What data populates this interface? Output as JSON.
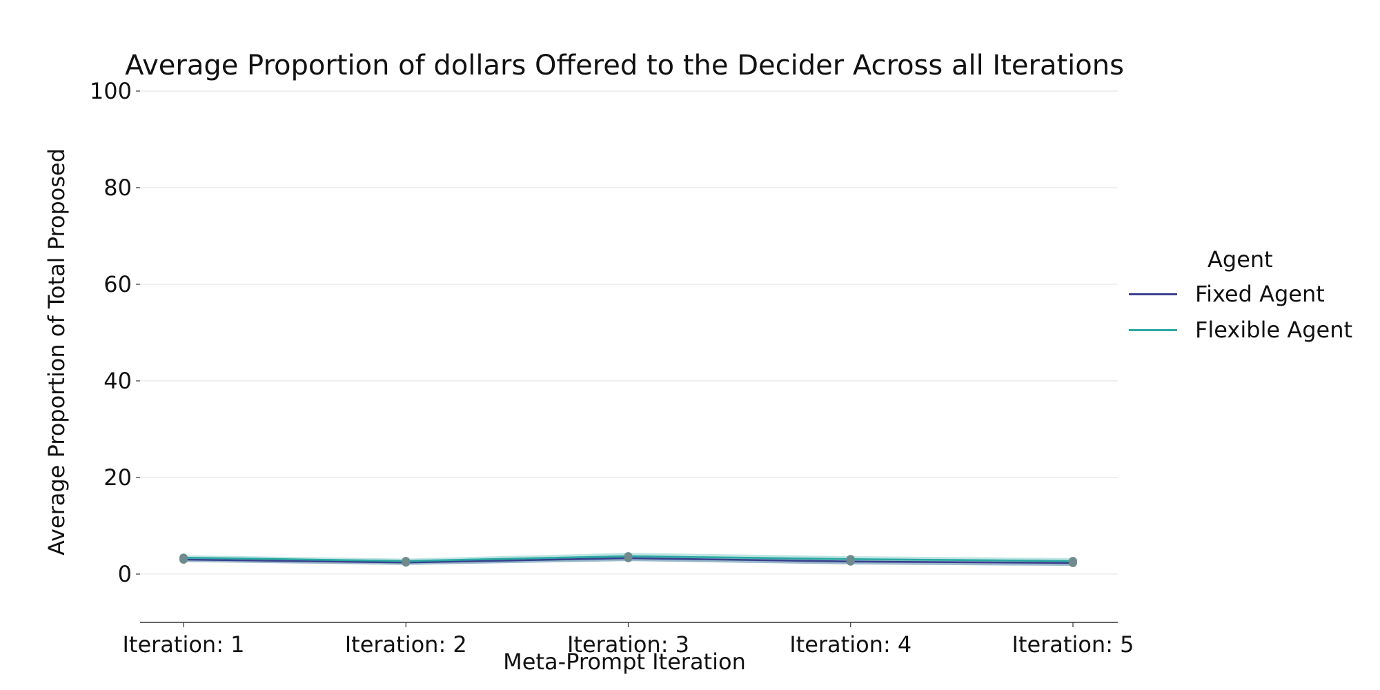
{
  "chart_data": {
    "type": "line",
    "title": "Average Proportion of dollars Offered to the Decider Across all Iterations",
    "xlabel": "Meta-Prompt Iteration",
    "ylabel": "Average Proportion of Total Proposed",
    "categories": [
      "Iteration: 1",
      "Iteration: 2",
      "Iteration: 3",
      "Iteration: 4",
      "Iteration: 5"
    ],
    "y_ticks": [
      0,
      20,
      40,
      60,
      80,
      100
    ],
    "ylim": [
      -10,
      100
    ],
    "grid": "horizontal",
    "legend": {
      "title": "Agent",
      "placement": "right"
    },
    "series": [
      {
        "name": "Fixed Agent",
        "color": "#3a3f8f",
        "band_color": "#4a7fa0",
        "values": [
          3.0,
          2.4,
          3.3,
          2.6,
          2.3
        ],
        "ci_low": [
          2.5,
          1.9,
          2.7,
          2.0,
          1.7
        ],
        "ci_high": [
          3.5,
          2.9,
          3.9,
          3.2,
          2.9
        ]
      },
      {
        "name": "Flexible Agent",
        "color": "#2aa8a1",
        "band_color": "#6fc6c2",
        "values": [
          3.4,
          2.7,
          3.7,
          3.1,
          2.7
        ],
        "ci_low": [
          2.9,
          2.2,
          3.0,
          2.5,
          2.1
        ],
        "ci_high": [
          3.9,
          3.2,
          4.4,
          3.7,
          3.3
        ]
      }
    ]
  }
}
